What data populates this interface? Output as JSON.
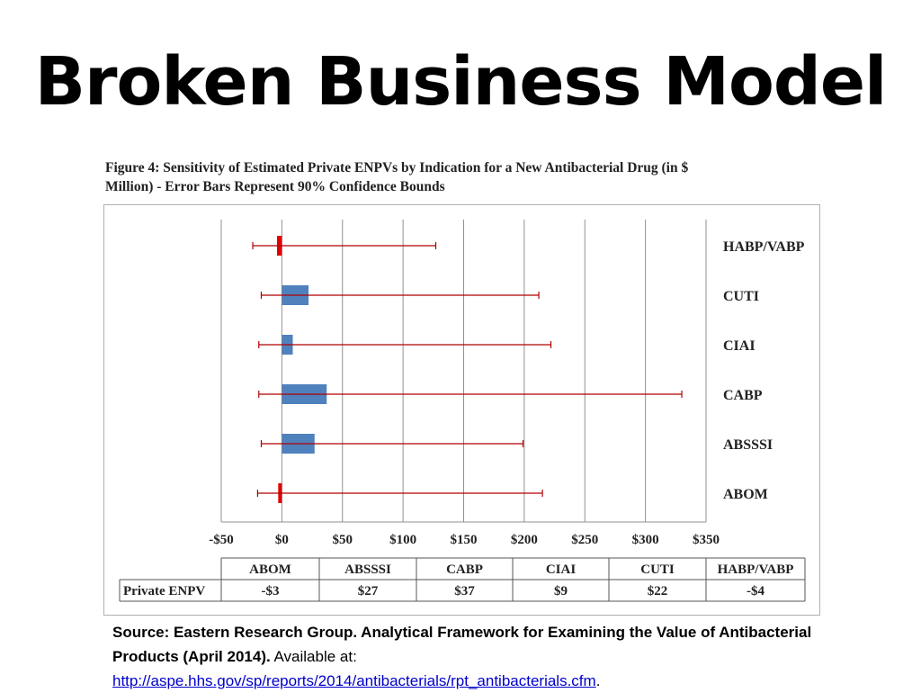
{
  "slide": {
    "title": "Broken Business Model"
  },
  "figure": {
    "caption_line1": "Figure 4: Sensitivity of Estimated Private ENPVs by Indication for a New Antibacterial Drug (in $",
    "caption_line2": "Million) - Error Bars Represent 90% Confidence Bounds"
  },
  "colors": {
    "positive_bar": "#4f81bd",
    "negative_bar": "#e00000",
    "error_bar": "#b00000",
    "grid": "#909090"
  },
  "chart_data": {
    "type": "bar",
    "orientation": "horizontal",
    "title": "Figure 4: Sensitivity of Estimated Private ENPVs by Indication for a New Antibacterial Drug (in $ Million) - Error Bars Represent 90% Confidence Bounds",
    "xlabel": "",
    "ylabel": "",
    "xlim": [
      -50,
      350
    ],
    "grid": true,
    "x_ticks": [
      -50,
      0,
      50,
      100,
      150,
      200,
      250,
      300,
      350
    ],
    "x_tick_labels": [
      "-$50",
      "$0",
      "$50",
      "$100",
      "$150",
      "$200",
      "$250",
      "$300",
      "$350"
    ],
    "categories": [
      "HABP/VABP",
      "CUTI",
      "CIAI",
      "CABP",
      "ABSSSI",
      "ABOM"
    ],
    "values": [
      -4,
      22,
      9,
      37,
      27,
      -3
    ],
    "error_low": [
      -24,
      -17,
      -19,
      -19,
      -17,
      -20
    ],
    "error_high": [
      127,
      212,
      222,
      330,
      199,
      215
    ],
    "table": {
      "row_label": "Private ENPV",
      "columns": [
        "ABOM",
        "ABSSSI",
        "CABP",
        "CIAI",
        "CUTI",
        "HABP/VABP"
      ],
      "values": [
        "-$3",
        "$27",
        "$37",
        "$9",
        "$22",
        "-$4"
      ]
    }
  },
  "source": {
    "bold_text": "Source: Eastern Research Group. Analytical Framework for Examining the Value of Antibacterial Products (April 2014).",
    "plain_text": " Available at:",
    "link_text": "http://aspe.hhs.gov/sp/reports/2014/antibacterials/rpt_antibacterials.cfm",
    "trailing": "."
  }
}
